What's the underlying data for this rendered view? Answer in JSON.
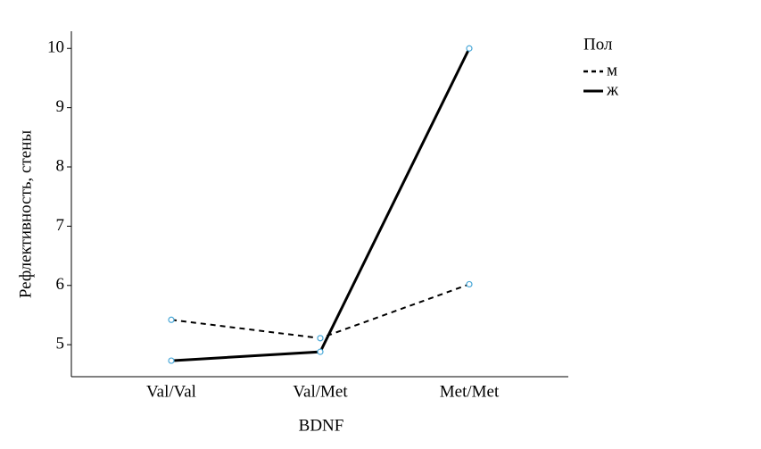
{
  "chart_data": {
    "type": "line",
    "x_label": "BDNF",
    "y_label": "Рефлективность, стены",
    "categories": [
      "Val/Val",
      "Val/Met",
      "Met/Met"
    ],
    "series": [
      {
        "name": "м",
        "color": "#000000",
        "linestyle": "dashed",
        "marker_color": "#4aa8d8",
        "values": [
          5.42,
          5.11,
          6.02
        ]
      },
      {
        "name": "ж",
        "color": "#000000",
        "linestyle": "solid",
        "marker_color": "#4aa8d8",
        "values": [
          4.73,
          4.88,
          10.0
        ]
      }
    ],
    "legend_title": "Пол",
    "legend": "right",
    "ylim": [
      4.46,
      10.29
    ],
    "yticks": [
      5,
      6,
      7,
      8,
      9,
      10
    ]
  }
}
